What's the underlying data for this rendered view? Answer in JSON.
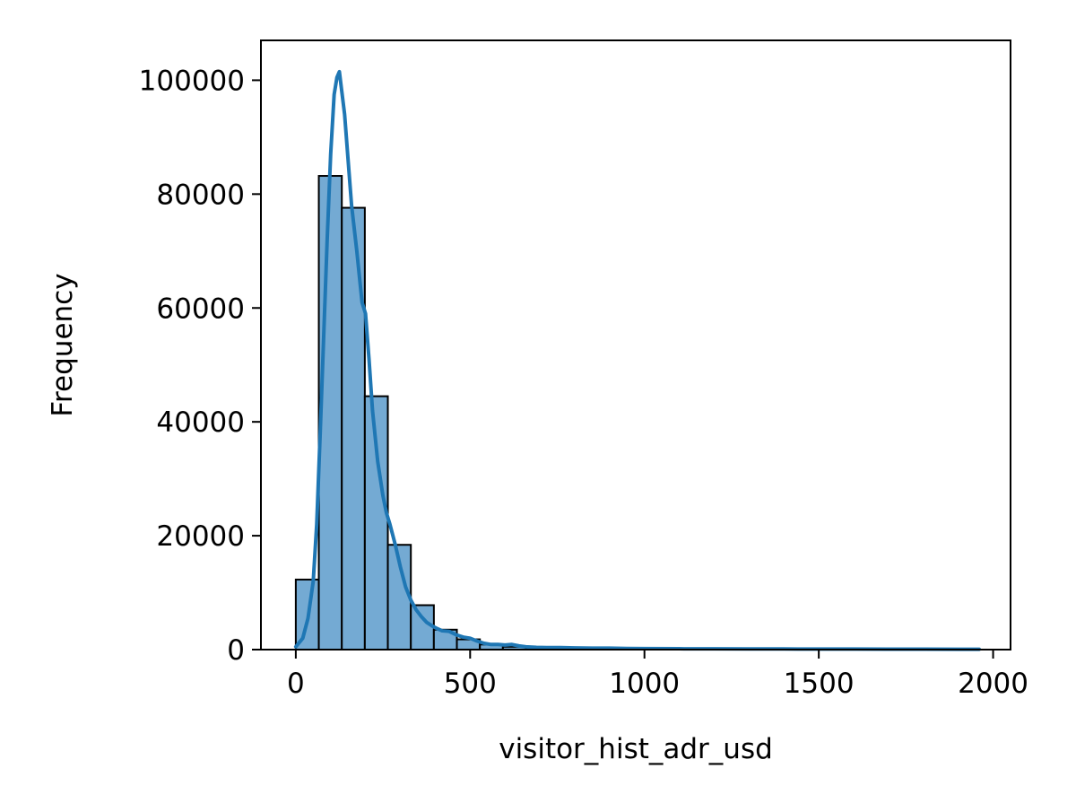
{
  "chart_data": {
    "type": "bar",
    "subtype": "histogram-with-kde",
    "title": "",
    "xlabel": "visitor_hist_adr_usd",
    "ylabel": "Frequency",
    "xlim": [
      -100,
      2050
    ],
    "ylim": [
      0,
      107000
    ],
    "x_ticks": [
      0,
      500,
      1000,
      1500,
      2000
    ],
    "x_tick_labels": [
      "0",
      "500",
      "1000",
      "1500",
      "2000"
    ],
    "y_ticks": [
      0,
      20000,
      40000,
      60000,
      80000,
      100000
    ],
    "y_tick_labels": [
      "0",
      "20000",
      "40000",
      "60000",
      "80000",
      "100000"
    ],
    "grid": false,
    "legend": "none",
    "colors": {
      "bar_fill": "#74aad3",
      "bar_edge": "#000000",
      "kde_line": "#1f77b4"
    },
    "bins": [
      {
        "x0": 0,
        "x1": 66,
        "count": 12300
      },
      {
        "x0": 66,
        "x1": 132,
        "count": 83200
      },
      {
        "x0": 132,
        "x1": 198,
        "count": 77600
      },
      {
        "x0": 198,
        "x1": 264,
        "count": 44500
      },
      {
        "x0": 264,
        "x1": 330,
        "count": 18400
      },
      {
        "x0": 330,
        "x1": 396,
        "count": 7800
      },
      {
        "x0": 396,
        "x1": 462,
        "count": 3500
      },
      {
        "x0": 462,
        "x1": 528,
        "count": 1800
      },
      {
        "x0": 528,
        "x1": 594,
        "count": 900
      },
      {
        "x0": 594,
        "x1": 660,
        "count": 500
      },
      {
        "x0": 660,
        "x1": 726,
        "count": 250
      },
      {
        "x0": 726,
        "x1": 792,
        "count": 200
      },
      {
        "x0": 792,
        "x1": 858,
        "count": 120
      },
      {
        "x0": 858,
        "x1": 924,
        "count": 80
      },
      {
        "x0": 924,
        "x1": 990,
        "count": 60
      },
      {
        "x0": 990,
        "x1": 1056,
        "count": 40
      },
      {
        "x0": 1056,
        "x1": 1122,
        "count": 30
      },
      {
        "x0": 1122,
        "x1": 1188,
        "count": 20
      },
      {
        "x0": 1188,
        "x1": 1254,
        "count": 20
      },
      {
        "x0": 1254,
        "x1": 1320,
        "count": 15
      },
      {
        "x0": 1320,
        "x1": 1386,
        "count": 10
      },
      {
        "x0": 1386,
        "x1": 1452,
        "count": 10
      },
      {
        "x0": 1452,
        "x1": 1518,
        "count": 8
      },
      {
        "x0": 1518,
        "x1": 1584,
        "count": 6
      },
      {
        "x0": 1584,
        "x1": 1650,
        "count": 5
      },
      {
        "x0": 1650,
        "x1": 1716,
        "count": 4
      },
      {
        "x0": 1716,
        "x1": 1782,
        "count": 3
      },
      {
        "x0": 1782,
        "x1": 1848,
        "count": 3
      },
      {
        "x0": 1848,
        "x1": 1914,
        "count": 2
      },
      {
        "x0": 1914,
        "x1": 1980,
        "count": 2
      }
    ],
    "kde": {
      "x": [
        0,
        20,
        35,
        50,
        60,
        70,
        80,
        90,
        100,
        110,
        118,
        125,
        132,
        140,
        150,
        160,
        175,
        190,
        200,
        210,
        220,
        235,
        250,
        260,
        270,
        285,
        300,
        315,
        330,
        345,
        360,
        375,
        390,
        405,
        420,
        440,
        460,
        480,
        500,
        520,
        540,
        560,
        580,
        600,
        620,
        640,
        660,
        690,
        720,
        760,
        800,
        850,
        900,
        950,
        1000,
        1100,
        1200,
        1300,
        1400,
        1500,
        1600,
        1700,
        1800,
        1900,
        1960
      ],
      "y": [
        500,
        2000,
        5500,
        12000,
        22000,
        38000,
        55000,
        72000,
        87000,
        97500,
        100500,
        101500,
        98000,
        94000,
        86000,
        78000,
        70000,
        61000,
        59000,
        51000,
        42000,
        33000,
        27000,
        24000,
        22000,
        18500,
        14500,
        11000,
        8700,
        7000,
        5800,
        4800,
        4200,
        3700,
        3300,
        3200,
        2600,
        2200,
        2000,
        1500,
        1100,
        900,
        900,
        800,
        900,
        650,
        500,
        400,
        350,
        350,
        300,
        250,
        250,
        200,
        180,
        150,
        130,
        120,
        110,
        100,
        90,
        80,
        70,
        60,
        50
      ]
    }
  }
}
